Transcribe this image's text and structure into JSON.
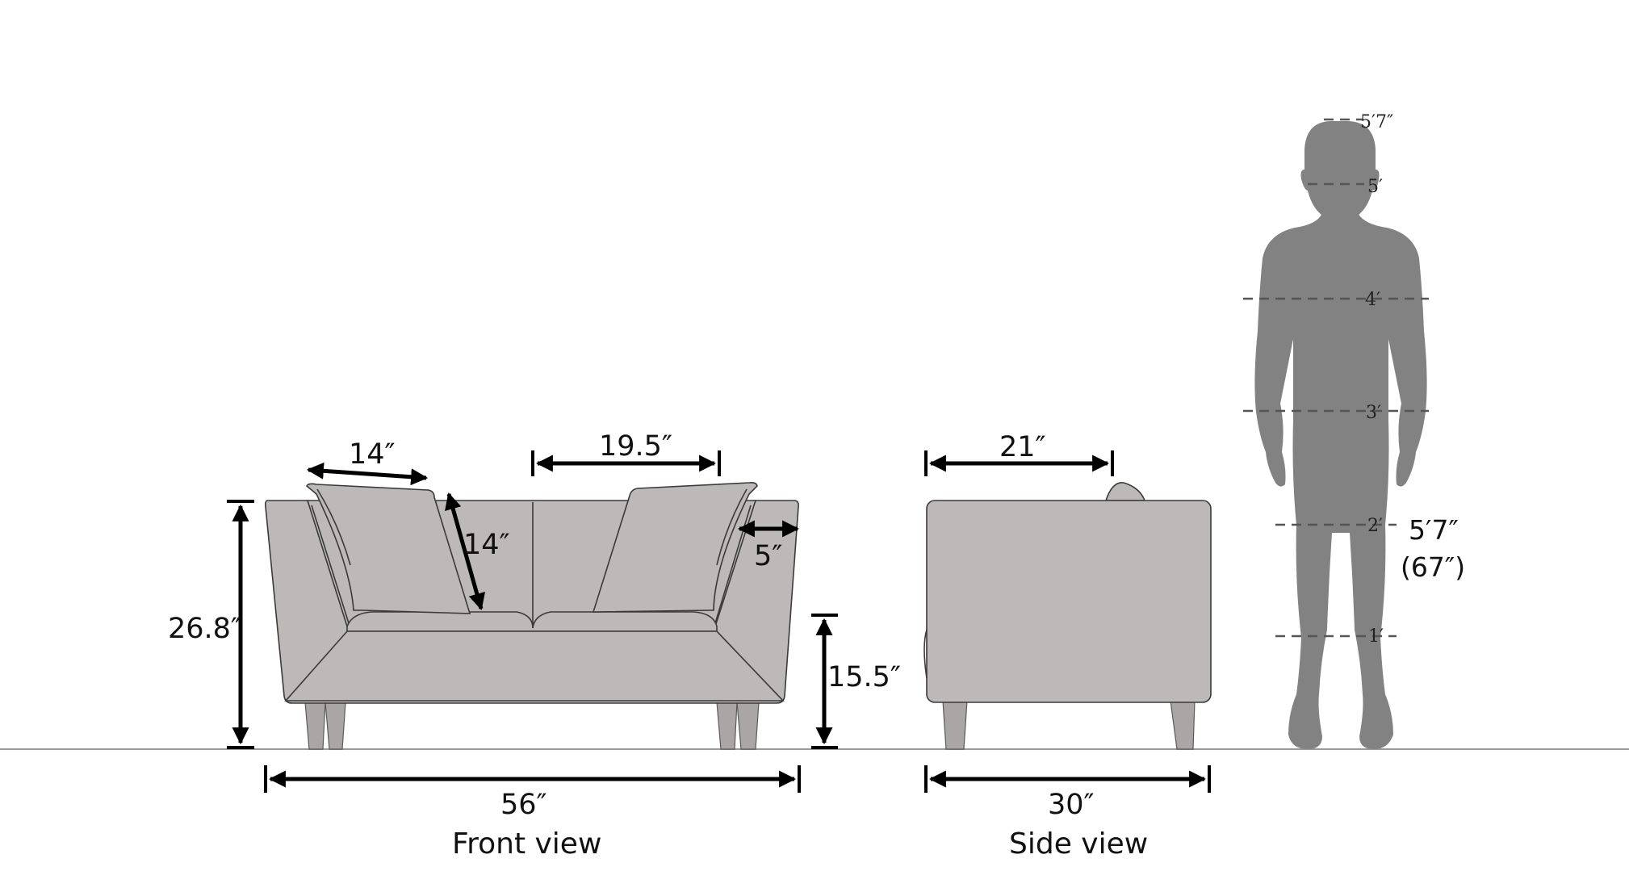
{
  "colors": {
    "sofa_fill": "#bcb9b8",
    "person_fill": "#828282",
    "outline": "#3a3a3a",
    "dimension_lines": "#000000"
  },
  "front_view": {
    "caption": "Front view",
    "dims": {
      "cushion_width": "14″",
      "cushion_height": "14″",
      "seat_width": "19.5″",
      "arm_width": "5″",
      "overall_height": "26.8″",
      "seat_height": "15.5″",
      "overall_width": "56″"
    }
  },
  "side_view": {
    "caption": "Side view",
    "dims": {
      "seat_depth": "21″",
      "overall_depth": "30″"
    }
  },
  "human_scale": {
    "ticks": [
      "5′7″",
      "5′",
      "4′",
      "3′",
      "2′",
      "1′"
    ],
    "height_label": "5′7″",
    "height_inches": "(67″)"
  }
}
